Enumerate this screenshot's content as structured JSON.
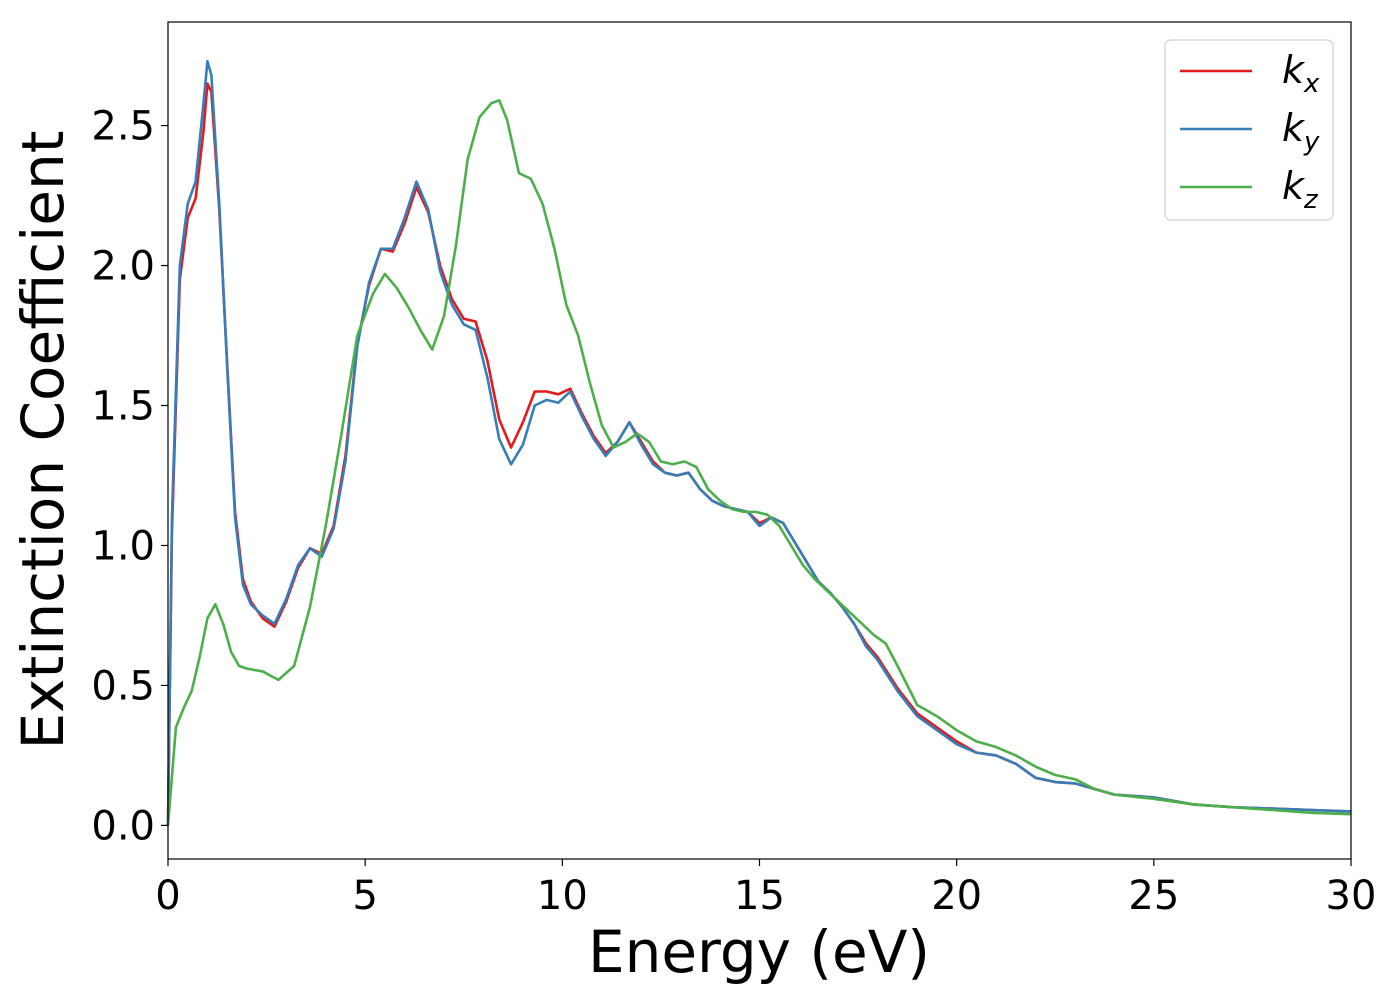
{
  "chart_data": {
    "type": "line",
    "xlabel": "Energy (eV)",
    "ylabel": "Extinction Coefficient",
    "xlim": [
      0,
      30
    ],
    "ylim": [
      -0.12,
      2.87
    ],
    "xticks": [
      0,
      5,
      10,
      15,
      20,
      25,
      30
    ],
    "xtick_labels": [
      "0",
      "5",
      "10",
      "15",
      "20",
      "25",
      "30"
    ],
    "yticks": [
      0.0,
      0.5,
      1.0,
      1.5,
      2.0,
      2.5
    ],
    "ytick_labels": [
      "0.0",
      "0.5",
      "1.0",
      "1.5",
      "2.0",
      "2.5"
    ],
    "grid": false,
    "legend_position": "top-right",
    "series": [
      {
        "name": "k",
        "subscript": "x",
        "color": "#e41a1c",
        "x": [
          0,
          0.1,
          0.3,
          0.5,
          0.7,
          0.9,
          1.0,
          1.1,
          1.3,
          1.5,
          1.7,
          1.9,
          2.1,
          2.4,
          2.7,
          3.0,
          3.3,
          3.6,
          3.9,
          4.2,
          4.5,
          4.8,
          5.1,
          5.4,
          5.7,
          6.0,
          6.3,
          6.6,
          6.9,
          7.2,
          7.5,
          7.8,
          8.1,
          8.4,
          8.7,
          9.0,
          9.3,
          9.6,
          9.9,
          10.2,
          10.5,
          10.8,
          11.1,
          11.4,
          11.7,
          12.0,
          12.3,
          12.6,
          12.9,
          13.2,
          13.5,
          13.8,
          14.1,
          14.4,
          14.7,
          15.0,
          15.3,
          15.6,
          15.9,
          16.2,
          16.5,
          16.8,
          17.1,
          17.4,
          17.7,
          18.0,
          18.5,
          19.0,
          19.5,
          20.0,
          20.5,
          21.0,
          21.5,
          22.0,
          22.5,
          23.0,
          23.5,
          24.0,
          25.0,
          26.0,
          27.0,
          28.0,
          29.0,
          30.0
        ],
        "values": [
          0.0,
          1.05,
          1.95,
          2.17,
          2.24,
          2.48,
          2.65,
          2.62,
          2.2,
          1.65,
          1.12,
          0.88,
          0.8,
          0.74,
          0.71,
          0.8,
          0.92,
          0.99,
          0.97,
          1.07,
          1.32,
          1.72,
          1.93,
          2.06,
          2.05,
          2.15,
          2.28,
          2.19,
          2.0,
          1.88,
          1.81,
          1.8,
          1.66,
          1.45,
          1.35,
          1.44,
          1.55,
          1.55,
          1.54,
          1.56,
          1.47,
          1.39,
          1.33,
          1.37,
          1.44,
          1.37,
          1.3,
          1.26,
          1.25,
          1.26,
          1.2,
          1.16,
          1.14,
          1.13,
          1.12,
          1.08,
          1.1,
          1.08,
          1.01,
          0.94,
          0.87,
          0.83,
          0.78,
          0.72,
          0.65,
          0.6,
          0.49,
          0.4,
          0.35,
          0.3,
          0.26,
          0.25,
          0.22,
          0.17,
          0.155,
          0.15,
          0.13,
          0.11,
          0.1,
          0.075,
          0.065,
          0.06,
          0.055,
          0.05
        ]
      },
      {
        "name": "k",
        "subscript": "y",
        "color": "#377eb8",
        "x": [
          0,
          0.1,
          0.3,
          0.5,
          0.7,
          0.9,
          1.0,
          1.1,
          1.3,
          1.5,
          1.7,
          1.9,
          2.1,
          2.4,
          2.7,
          3.0,
          3.3,
          3.6,
          3.9,
          4.2,
          4.5,
          4.8,
          5.1,
          5.4,
          5.7,
          6.0,
          6.3,
          6.6,
          6.9,
          7.2,
          7.5,
          7.8,
          8.1,
          8.4,
          8.7,
          9.0,
          9.3,
          9.6,
          9.9,
          10.2,
          10.5,
          10.8,
          11.1,
          11.4,
          11.7,
          12.0,
          12.3,
          12.6,
          12.9,
          13.2,
          13.5,
          13.8,
          14.1,
          14.4,
          14.7,
          15.0,
          15.3,
          15.6,
          15.9,
          16.2,
          16.5,
          16.8,
          17.1,
          17.4,
          17.7,
          18.0,
          18.5,
          19.0,
          19.5,
          20.0,
          20.5,
          21.0,
          21.5,
          22.0,
          22.5,
          23.0,
          23.5,
          24.0,
          25.0,
          26.0,
          27.0,
          28.0,
          29.0,
          30.0
        ],
        "values": [
          0.0,
          1.1,
          2.0,
          2.22,
          2.3,
          2.58,
          2.73,
          2.68,
          2.22,
          1.64,
          1.1,
          0.86,
          0.79,
          0.75,
          0.72,
          0.81,
          0.93,
          0.99,
          0.96,
          1.06,
          1.3,
          1.71,
          1.94,
          2.06,
          2.06,
          2.17,
          2.3,
          2.2,
          1.98,
          1.86,
          1.79,
          1.77,
          1.6,
          1.38,
          1.29,
          1.36,
          1.5,
          1.52,
          1.51,
          1.55,
          1.46,
          1.38,
          1.32,
          1.37,
          1.44,
          1.36,
          1.29,
          1.26,
          1.25,
          1.26,
          1.2,
          1.16,
          1.14,
          1.13,
          1.12,
          1.07,
          1.1,
          1.08,
          1.01,
          0.94,
          0.87,
          0.83,
          0.78,
          0.72,
          0.64,
          0.59,
          0.48,
          0.39,
          0.34,
          0.29,
          0.26,
          0.25,
          0.22,
          0.17,
          0.155,
          0.15,
          0.13,
          0.11,
          0.1,
          0.075,
          0.065,
          0.06,
          0.055,
          0.05
        ]
      },
      {
        "name": "k",
        "subscript": "z",
        "color": "#4daf4a",
        "x": [
          0,
          0.2,
          0.4,
          0.6,
          0.8,
          1.0,
          1.2,
          1.4,
          1.6,
          1.8,
          2.0,
          2.4,
          2.8,
          3.2,
          3.6,
          4.0,
          4.4,
          4.8,
          5.2,
          5.5,
          5.8,
          6.1,
          6.4,
          6.7,
          7.0,
          7.3,
          7.6,
          7.9,
          8.2,
          8.4,
          8.6,
          8.9,
          9.2,
          9.5,
          9.8,
          10.1,
          10.4,
          10.7,
          11.0,
          11.3,
          11.6,
          11.9,
          12.2,
          12.5,
          12.8,
          13.1,
          13.4,
          13.7,
          14.0,
          14.3,
          14.6,
          14.9,
          15.2,
          15.5,
          15.8,
          16.1,
          16.4,
          16.7,
          17.0,
          17.3,
          17.6,
          17.9,
          18.2,
          18.5,
          19.0,
          19.5,
          20.0,
          20.5,
          21.0,
          21.5,
          22.0,
          22.5,
          23.0,
          23.5,
          24.0,
          25.0,
          26.0,
          27.0,
          28.0,
          29.0,
          30.0
        ],
        "values": [
          0.0,
          0.35,
          0.42,
          0.48,
          0.6,
          0.74,
          0.79,
          0.72,
          0.62,
          0.57,
          0.56,
          0.55,
          0.52,
          0.57,
          0.78,
          1.07,
          1.4,
          1.75,
          1.9,
          1.97,
          1.92,
          1.85,
          1.77,
          1.7,
          1.82,
          2.07,
          2.38,
          2.53,
          2.58,
          2.59,
          2.52,
          2.33,
          2.31,
          2.22,
          2.06,
          1.86,
          1.75,
          1.58,
          1.43,
          1.35,
          1.37,
          1.4,
          1.37,
          1.3,
          1.29,
          1.3,
          1.28,
          1.2,
          1.16,
          1.13,
          1.12,
          1.12,
          1.11,
          1.07,
          1.0,
          0.93,
          0.88,
          0.84,
          0.8,
          0.76,
          0.72,
          0.68,
          0.65,
          0.57,
          0.43,
          0.39,
          0.34,
          0.3,
          0.28,
          0.25,
          0.21,
          0.18,
          0.165,
          0.13,
          0.11,
          0.095,
          0.075,
          0.065,
          0.055,
          0.045,
          0.04
        ]
      }
    ]
  }
}
